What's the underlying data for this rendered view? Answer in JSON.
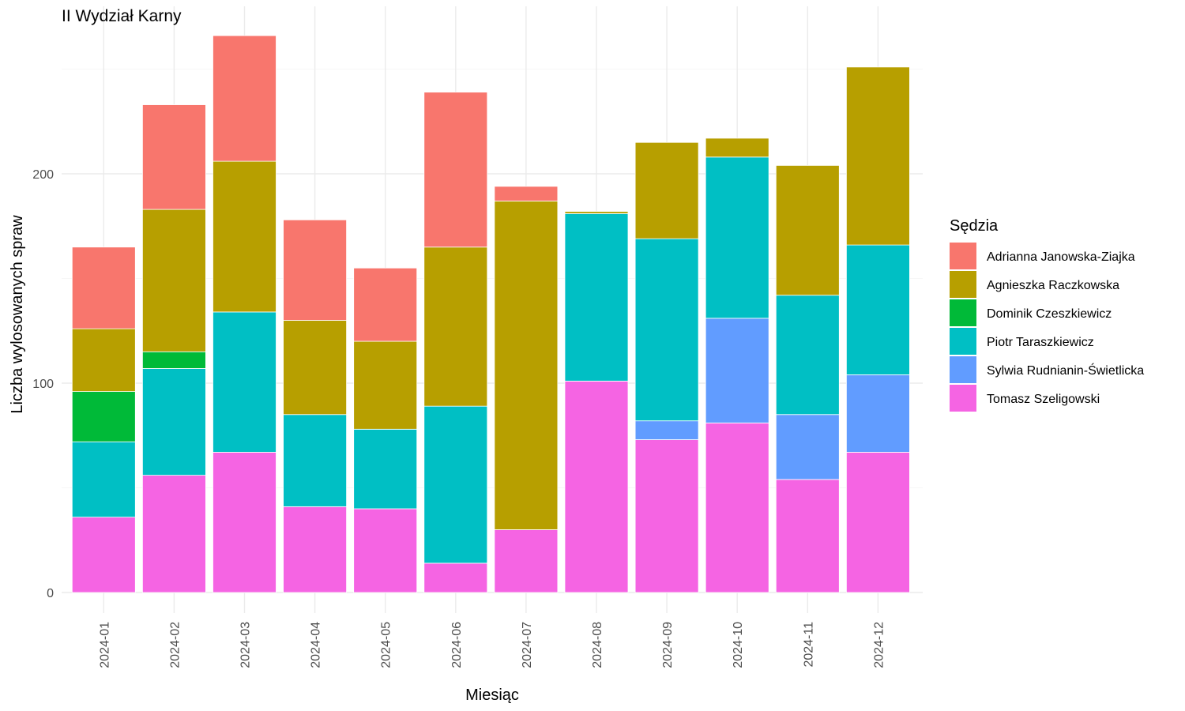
{
  "chart_data": {
    "type": "bar",
    "stacked": true,
    "title": "II Wydział Karny",
    "xlabel": "Miesiąc",
    "ylabel": "Liczba wylosowanych spraw",
    "ylim": [
      0,
      280
    ],
    "yticks": [
      0,
      100,
      200
    ],
    "grid": true,
    "legend_title": "Sędzia",
    "legend_position": "right",
    "categories": [
      "2024-01",
      "2024-02",
      "2024-03",
      "2024-04",
      "2024-05",
      "2024-06",
      "2024-07",
      "2024-08",
      "2024-09",
      "2024-10",
      "2024-11",
      "2024-12"
    ],
    "series": [
      {
        "name": "Tomasz Szeligowski",
        "color": "#F564E3",
        "values": [
          36,
          56,
          67,
          41,
          40,
          14,
          30,
          101,
          73,
          81,
          54,
          67
        ]
      },
      {
        "name": "Sylwia Rudnianin-Świetlicka",
        "color": "#619CFF",
        "values": [
          0,
          0,
          0,
          0,
          0,
          0,
          0,
          0,
          9,
          50,
          31,
          37
        ]
      },
      {
        "name": "Piotr Taraszkiewicz",
        "color": "#00BFC4",
        "values": [
          36,
          51,
          67,
          44,
          38,
          75,
          0,
          80,
          87,
          77,
          57,
          62
        ]
      },
      {
        "name": "Dominik Czeszkiewicz",
        "color": "#00BA38",
        "values": [
          24,
          8,
          0,
          0,
          0,
          0,
          0,
          0,
          0,
          0,
          0,
          0
        ]
      },
      {
        "name": "Agnieszka Raczkowska",
        "color": "#B79F00",
        "values": [
          30,
          68,
          72,
          45,
          42,
          76,
          157,
          1,
          46,
          9,
          62,
          85
        ]
      },
      {
        "name": "Adrianna Janowska-Ziajka",
        "color": "#F8766D",
        "values": [
          39,
          50,
          60,
          48,
          35,
          74,
          7,
          0,
          0,
          0,
          0,
          0
        ]
      }
    ],
    "legend_order": [
      "Adrianna Janowska-Ziajka",
      "Agnieszka Raczkowska",
      "Dominik Czeszkiewicz",
      "Piotr Taraszkiewicz",
      "Sylwia Rudnianin-Świetlicka",
      "Tomasz Szeligowski"
    ]
  }
}
